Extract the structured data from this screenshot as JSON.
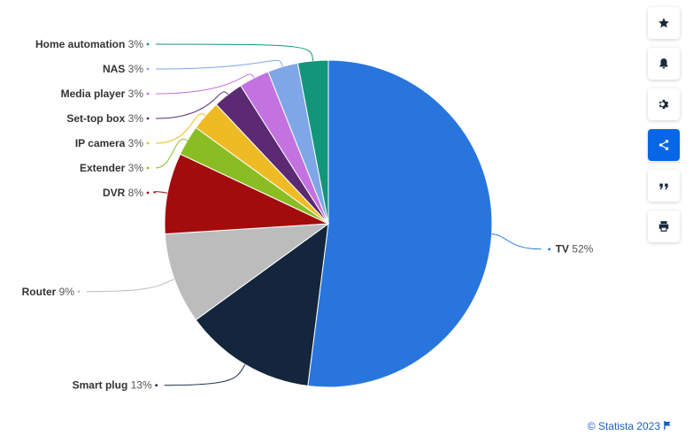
{
  "chart_data": {
    "type": "pie",
    "title": "",
    "slices": [
      {
        "label": "TV",
        "value": 52,
        "display": "52%",
        "color": "#2876dd"
      },
      {
        "label": "Smart plug",
        "value": 13,
        "display": "13%",
        "color": "#14263d"
      },
      {
        "label": "Router",
        "value": 9,
        "display": "9%",
        "color": "#bcbcbc"
      },
      {
        "label": "DVR",
        "value": 8,
        "display": "8%",
        "color": "#a30c0c"
      },
      {
        "label": "Extender",
        "value": 3,
        "display": "3%",
        "color": "#8abd24"
      },
      {
        "label": "IP camera",
        "value": 3,
        "display": "3%",
        "color": "#efbb25"
      },
      {
        "label": "Set-top box",
        "value": 3,
        "display": "3%",
        "color": "#5b2a73"
      },
      {
        "label": "Media player",
        "value": 3,
        "display": "3%",
        "color": "#c472e0"
      },
      {
        "label": "NAS",
        "value": 3,
        "display": "3%",
        "color": "#7fa6e6"
      },
      {
        "label": "Home automation",
        "value": 3,
        "display": "3%",
        "color": "#12957a"
      }
    ]
  },
  "toolbar": {
    "buttons": [
      {
        "icon": "star-icon",
        "active": false
      },
      {
        "icon": "bell-icon",
        "active": false
      },
      {
        "icon": "gear-icon",
        "active": false
      },
      {
        "icon": "share-icon",
        "active": true
      },
      {
        "icon": "quote-icon",
        "active": false
      },
      {
        "icon": "print-icon",
        "active": false
      }
    ]
  },
  "credit": {
    "text": "© Statista 2023"
  }
}
